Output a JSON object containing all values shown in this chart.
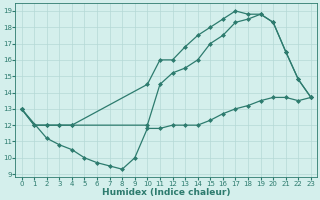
{
  "line1_x": [
    0,
    1,
    2,
    3,
    4,
    10,
    11,
    12,
    13,
    14,
    15,
    16,
    17,
    18,
    19,
    20,
    21,
    22,
    23
  ],
  "line1_y": [
    13,
    12,
    12,
    12,
    12,
    14.5,
    16.0,
    16.0,
    16.8,
    17.5,
    18.0,
    18.5,
    19.0,
    18.8,
    18.8,
    18.3,
    16.5,
    14.8,
    13.7
  ],
  "line2_x": [
    0,
    1,
    2,
    3,
    4,
    10,
    11,
    12,
    13,
    14,
    15,
    16,
    17,
    18,
    19,
    20,
    21,
    22,
    23
  ],
  "line2_y": [
    13,
    12,
    12,
    12,
    12,
    12,
    14.5,
    15.2,
    15.5,
    16.0,
    17.0,
    17.5,
    18.3,
    18.5,
    18.8,
    18.3,
    16.5,
    14.8,
    13.7
  ],
  "line3_x": [
    0,
    2,
    3,
    4,
    5,
    6,
    7,
    8,
    9,
    10,
    11,
    12,
    13,
    14,
    15,
    16,
    17,
    18,
    19,
    20,
    21,
    22,
    23
  ],
  "line3_y": [
    13,
    11.2,
    10.8,
    10.5,
    10.0,
    9.7,
    9.5,
    9.3,
    10.0,
    11.8,
    11.8,
    12.0,
    12.0,
    12.0,
    12.3,
    12.7,
    13.0,
    13.2,
    13.5,
    13.7,
    13.7,
    13.5,
    13.7
  ],
  "color": "#2d7b6e",
  "bg_color": "#d4efec",
  "grid_color": "#b5d9d6",
  "xlabel": "Humidex (Indice chaleur)",
  "xlim": [
    -0.5,
    23.5
  ],
  "ylim": [
    8.8,
    19.5
  ],
  "xticks": [
    0,
    1,
    2,
    3,
    4,
    5,
    6,
    7,
    8,
    9,
    10,
    11,
    12,
    13,
    14,
    15,
    16,
    17,
    18,
    19,
    20,
    21,
    22,
    23
  ],
  "yticks": [
    9,
    10,
    11,
    12,
    13,
    14,
    15,
    16,
    17,
    18,
    19
  ],
  "tick_fontsize": 5.0,
  "xlabel_fontsize": 6.5,
  "marker": "D",
  "markersize": 2.0,
  "linewidth": 0.9
}
